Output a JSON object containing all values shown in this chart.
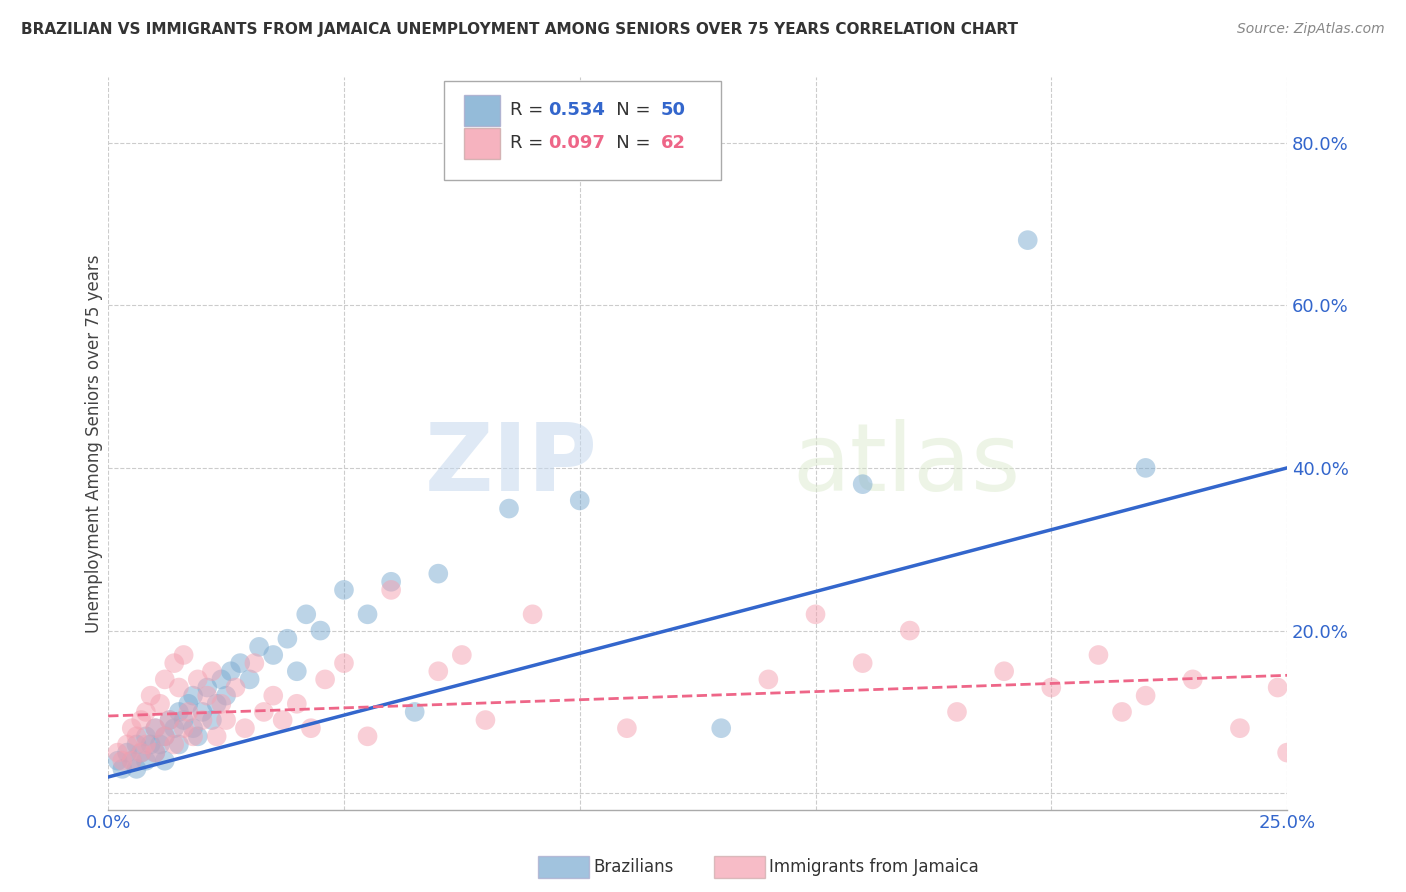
{
  "title": "BRAZILIAN VS IMMIGRANTS FROM JAMAICA UNEMPLOYMENT AMONG SENIORS OVER 75 YEARS CORRELATION CHART",
  "source": "Source: ZipAtlas.com",
  "ylabel": "Unemployment Among Seniors over 75 years",
  "legend_label1": "Brazilians",
  "legend_label2": "Immigrants from Jamaica",
  "blue_color": "#7aaad0",
  "pink_color": "#f4a0b0",
  "line_blue": "#3366cc",
  "line_pink": "#ee6688",
  "xlim": [
    0.0,
    0.25
  ],
  "ylim": [
    -0.02,
    0.88
  ],
  "blue_line_x0": 0.0,
  "blue_line_y0": 0.02,
  "blue_line_x1": 0.25,
  "blue_line_y1": 0.4,
  "pink_line_x0": 0.0,
  "pink_line_y0": 0.095,
  "pink_line_x1": 0.25,
  "pink_line_y1": 0.145,
  "blue_points_x": [
    0.002,
    0.003,
    0.004,
    0.005,
    0.006,
    0.006,
    0.007,
    0.008,
    0.008,
    0.009,
    0.01,
    0.01,
    0.011,
    0.012,
    0.012,
    0.013,
    0.014,
    0.015,
    0.015,
    0.016,
    0.017,
    0.018,
    0.018,
    0.019,
    0.02,
    0.021,
    0.022,
    0.023,
    0.024,
    0.025,
    0.026,
    0.028,
    0.03,
    0.032,
    0.035,
    0.038,
    0.04,
    0.042,
    0.045,
    0.05,
    0.055,
    0.06,
    0.065,
    0.07,
    0.085,
    0.1,
    0.13,
    0.16,
    0.195,
    0.22
  ],
  "blue_points_y": [
    0.04,
    0.03,
    0.05,
    0.04,
    0.06,
    0.03,
    0.05,
    0.07,
    0.04,
    0.06,
    0.05,
    0.08,
    0.06,
    0.07,
    0.04,
    0.09,
    0.08,
    0.1,
    0.06,
    0.09,
    0.11,
    0.08,
    0.12,
    0.07,
    0.1,
    0.13,
    0.09,
    0.11,
    0.14,
    0.12,
    0.15,
    0.16,
    0.14,
    0.18,
    0.17,
    0.19,
    0.15,
    0.22,
    0.2,
    0.25,
    0.22,
    0.26,
    0.1,
    0.27,
    0.35,
    0.36,
    0.08,
    0.38,
    0.68,
    0.4
  ],
  "pink_points_x": [
    0.002,
    0.003,
    0.004,
    0.005,
    0.005,
    0.006,
    0.007,
    0.007,
    0.008,
    0.008,
    0.009,
    0.01,
    0.01,
    0.011,
    0.012,
    0.012,
    0.013,
    0.014,
    0.014,
    0.015,
    0.016,
    0.016,
    0.017,
    0.018,
    0.019,
    0.02,
    0.021,
    0.022,
    0.023,
    0.024,
    0.025,
    0.027,
    0.029,
    0.031,
    0.033,
    0.035,
    0.037,
    0.04,
    0.043,
    0.046,
    0.05,
    0.055,
    0.06,
    0.07,
    0.075,
    0.08,
    0.09,
    0.11,
    0.14,
    0.16,
    0.17,
    0.18,
    0.19,
    0.2,
    0.21,
    0.215,
    0.22,
    0.23,
    0.24,
    0.248,
    0.15,
    0.25
  ],
  "pink_points_y": [
    0.05,
    0.04,
    0.06,
    0.08,
    0.04,
    0.07,
    0.09,
    0.05,
    0.1,
    0.06,
    0.12,
    0.08,
    0.05,
    0.11,
    0.14,
    0.07,
    0.09,
    0.16,
    0.06,
    0.13,
    0.08,
    0.17,
    0.1,
    0.07,
    0.14,
    0.09,
    0.12,
    0.15,
    0.07,
    0.11,
    0.09,
    0.13,
    0.08,
    0.16,
    0.1,
    0.12,
    0.09,
    0.11,
    0.08,
    0.14,
    0.16,
    0.07,
    0.25,
    0.15,
    0.17,
    0.09,
    0.22,
    0.08,
    0.14,
    0.16,
    0.2,
    0.1,
    0.15,
    0.13,
    0.17,
    0.1,
    0.12,
    0.14,
    0.08,
    0.13,
    0.22,
    0.05
  ],
  "watermark_zip": "ZIP",
  "watermark_atlas": "atlas",
  "background_color": "#ffffff",
  "grid_color": "#cccccc",
  "ytick_positions": [
    0.0,
    0.2,
    0.4,
    0.6,
    0.8
  ],
  "ytick_labels": [
    "",
    "20.0%",
    "40.0%",
    "60.0%",
    "80.0%"
  ],
  "xtick_positions": [
    0.0,
    0.25
  ],
  "xtick_labels": [
    "0.0%",
    "25.0%"
  ]
}
